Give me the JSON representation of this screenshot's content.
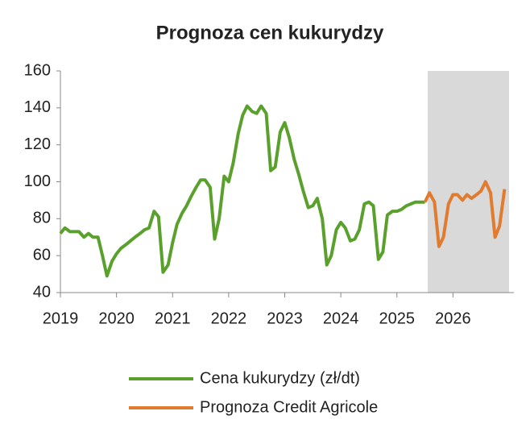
{
  "chart_data": {
    "type": "line",
    "title": "Prognoza cen kukurydzy",
    "xlim": [
      2019,
      2027
    ],
    "xticks": [
      2019,
      2020,
      2021,
      2022,
      2023,
      2024,
      2025,
      2026
    ],
    "ylim": [
      40,
      160
    ],
    "yticks": [
      40,
      60,
      80,
      100,
      120,
      140,
      160
    ],
    "shade": {
      "x": [
        2025.55,
        2027
      ],
      "color": "#d9d9d9"
    },
    "legend": "bottom",
    "series": [
      {
        "name": "Cena kukurydzy (zł/dt)",
        "color": "#5aa02c",
        "x": [
          2019.0,
          2019.08,
          2019.17,
          2019.25,
          2019.33,
          2019.42,
          2019.5,
          2019.58,
          2019.67,
          2019.75,
          2019.83,
          2019.92,
          2020.0,
          2020.08,
          2020.17,
          2020.25,
          2020.33,
          2020.42,
          2020.5,
          2020.58,
          2020.67,
          2020.75,
          2020.83,
          2020.92,
          2021.0,
          2021.08,
          2021.17,
          2021.25,
          2021.33,
          2021.42,
          2021.5,
          2021.58,
          2021.67,
          2021.75,
          2021.83,
          2021.92,
          2022.0,
          2022.08,
          2022.17,
          2022.25,
          2022.33,
          2022.42,
          2022.5,
          2022.58,
          2022.67,
          2022.75,
          2022.83,
          2022.92,
          2023.0,
          2023.08,
          2023.17,
          2023.25,
          2023.33,
          2023.42,
          2023.5,
          2023.58,
          2023.67,
          2023.75,
          2023.83,
          2023.92,
          2024.0,
          2024.08,
          2024.17,
          2024.25,
          2024.33,
          2024.42,
          2024.5,
          2024.58,
          2024.67,
          2024.75,
          2024.83,
          2024.92,
          2025.0,
          2025.08,
          2025.17,
          2025.25,
          2025.33,
          2025.42,
          2025.5
        ],
        "values": [
          72,
          75,
          73,
          73,
          73,
          70,
          72,
          70,
          70,
          60,
          49,
          57,
          61,
          64,
          66,
          68,
          70,
          72,
          74,
          75,
          84,
          81,
          51,
          55,
          67,
          77,
          83,
          87,
          92,
          97,
          101,
          101,
          97,
          69,
          80,
          103,
          100,
          110,
          126,
          136,
          141,
          138,
          137,
          141,
          137,
          106,
          108,
          127,
          132,
          124,
          112,
          104,
          95,
          86,
          87,
          91,
          80,
          55,
          60,
          74,
          78,
          75,
          68,
          69,
          74,
          88,
          89,
          87,
          58,
          62,
          82,
          84,
          84,
          85,
          87,
          88,
          89,
          89,
          89
        ]
      },
      {
        "name": "Prognoza Credit Agricole",
        "color": "#e07b2f",
        "x": [
          2025.5,
          2025.58,
          2025.67,
          2025.75,
          2025.83,
          2025.92,
          2026.0,
          2026.08,
          2026.17,
          2026.25,
          2026.33,
          2026.42,
          2026.5,
          2026.58,
          2026.67,
          2026.75,
          2026.83,
          2026.92
        ],
        "values": [
          89,
          94,
          89,
          65,
          70,
          88,
          93,
          93,
          90,
          93,
          91,
          93,
          95,
          100,
          94,
          70,
          76,
          96
        ]
      }
    ]
  }
}
